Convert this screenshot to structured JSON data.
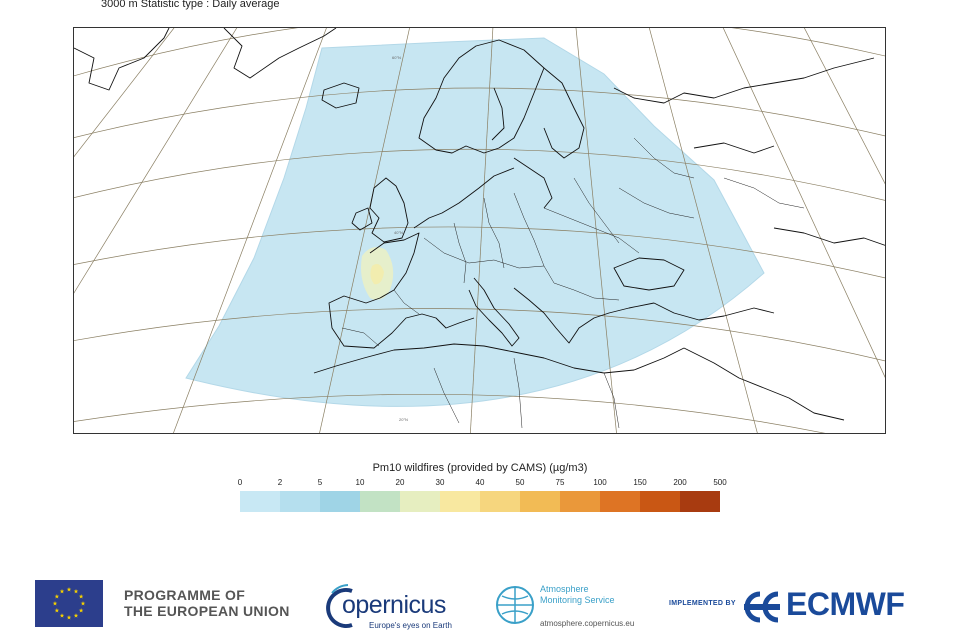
{
  "header": {
    "subtitle": "3000 m Statistic type : Daily average"
  },
  "map": {
    "region": "Europe",
    "projection": "polar stereographic",
    "domain_fill_color": "#c7e6f2",
    "plume_color": "#e8efc8",
    "coastline_color": "#111111",
    "graticule_color": "#8a7f63",
    "graticule_labels": [
      "60°N",
      "40°N",
      "20°N"
    ]
  },
  "legend": {
    "title": "Pm10 wildfires (provided by CAMS) (µg/m3)",
    "ticks": [
      "0",
      "2",
      "5",
      "10",
      "20",
      "30",
      "40",
      "50",
      "75",
      "100",
      "150",
      "200",
      "500"
    ],
    "colors": [
      "#c8e8f4",
      "#b5dfee",
      "#9fd4e6",
      "#c2e2c4",
      "#e6eec0",
      "#f8e8a0",
      "#f6d67e",
      "#f2bb55",
      "#ea983a",
      "#de7424",
      "#c95714",
      "#a83b10",
      "#8a2108"
    ]
  },
  "logos": {
    "eu_line1": "PROGRAMME OF",
    "eu_line2": "THE EUROPEAN UNION",
    "copernicus_name": "opernicus",
    "copernicus_tagline": "Europe's eyes on Earth",
    "ams_line1": "Atmosphere",
    "ams_line2": "Monitoring Service",
    "ams_url": "atmosphere.copernicus.eu",
    "implemented_by": "IMPLEMENTED BY",
    "ecmwf": "ECMWF",
    "eu_flag_color": "#2c3e8c",
    "eu_star_color": "#f5d100",
    "copernicus_color": "#1a3a7a",
    "ams_color": "#3aa0c8",
    "ecmwf_color": "#1a4a9a"
  }
}
